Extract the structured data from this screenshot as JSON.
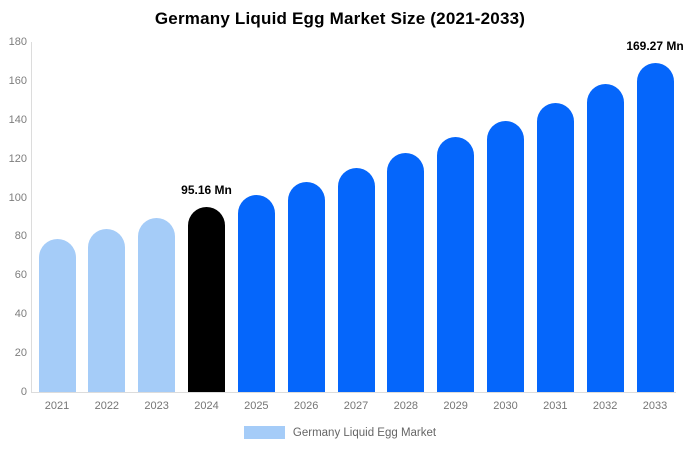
{
  "title": "Germany Liquid Egg Market Size (2021-2033)",
  "legend": {
    "label": "Germany Liquid Egg Market"
  },
  "colors": {
    "light_blue": "#A5CCF8",
    "blue": "#0566FB",
    "black": "#000000",
    "axis_line": "#DCDCDC",
    "y_tick_label": "#7D7D7D",
    "x_tick_label": "#757575",
    "annotation": "#000000",
    "legend_text": "#666666"
  },
  "chart_data": {
    "type": "bar",
    "title": "Germany Liquid Egg Market Size (2021-2033)",
    "categories": [
      "2021",
      "2022",
      "2023",
      "2024",
      "2025",
      "2026",
      "2027",
      "2028",
      "2029",
      "2030",
      "2031",
      "2032",
      "2033"
    ],
    "values": [
      78.5,
      83.7,
      89.3,
      95.16,
      101.5,
      108.2,
      115.3,
      122.9,
      131.0,
      139.6,
      148.8,
      158.6,
      169.27
    ],
    "unit": "Mn",
    "xlabel": "",
    "ylabel": "",
    "ylim": [
      0,
      180
    ],
    "yticks": [
      0,
      20,
      40,
      60,
      80,
      100,
      120,
      140,
      160,
      180
    ],
    "grid": false,
    "legend_position": "bottom",
    "bar_color_keys": [
      "light_blue",
      "light_blue",
      "light_blue",
      "black",
      "blue",
      "blue",
      "blue",
      "blue",
      "blue",
      "blue",
      "blue",
      "blue",
      "blue"
    ],
    "annotations": [
      {
        "category": "2024",
        "text": "95.16 Mn"
      },
      {
        "category": "2033",
        "text": "169.27 Mn"
      }
    ]
  }
}
